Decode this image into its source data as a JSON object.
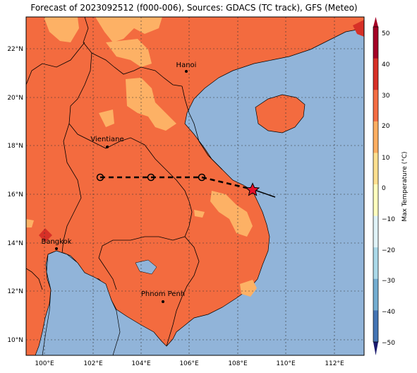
{
  "title": "Forecast of 2023092512 (f000-006), Sources: GDACS (TC track), GFS (Meteo)",
  "colorbar": {
    "label": "Max Temperature (°C)",
    "ticks": [
      "50",
      "40",
      "30",
      "20",
      "10",
      "0",
      "−10",
      "−20",
      "−30",
      "−40",
      "−50"
    ],
    "colors": [
      "#a50026",
      "#d73027",
      "#f46d43",
      "#fdae61",
      "#fee090",
      "#ffffbf",
      "#e0f3f8",
      "#abd9e9",
      "#74add1",
      "#4575b4",
      "#313695",
      "#1a1a6e"
    ]
  },
  "lat_labels": [
    "22°N",
    "20°N",
    "18°N",
    "16°N",
    "14°N",
    "12°N",
    "10°N"
  ],
  "lon_labels": [
    "100°E",
    "102°E",
    "104°E",
    "106°E",
    "108°E",
    "110°E",
    "112°E"
  ],
  "cities": [
    {
      "name": "Hanoi"
    },
    {
      "name": "Vientiane"
    },
    {
      "name": "Bangkok"
    },
    {
      "name": "Phnom Penh"
    }
  ],
  "colors": {
    "sea": "#91b4d9",
    "land": "#f36b3f",
    "warm": "#fdb165",
    "hot": "#d73027"
  }
}
